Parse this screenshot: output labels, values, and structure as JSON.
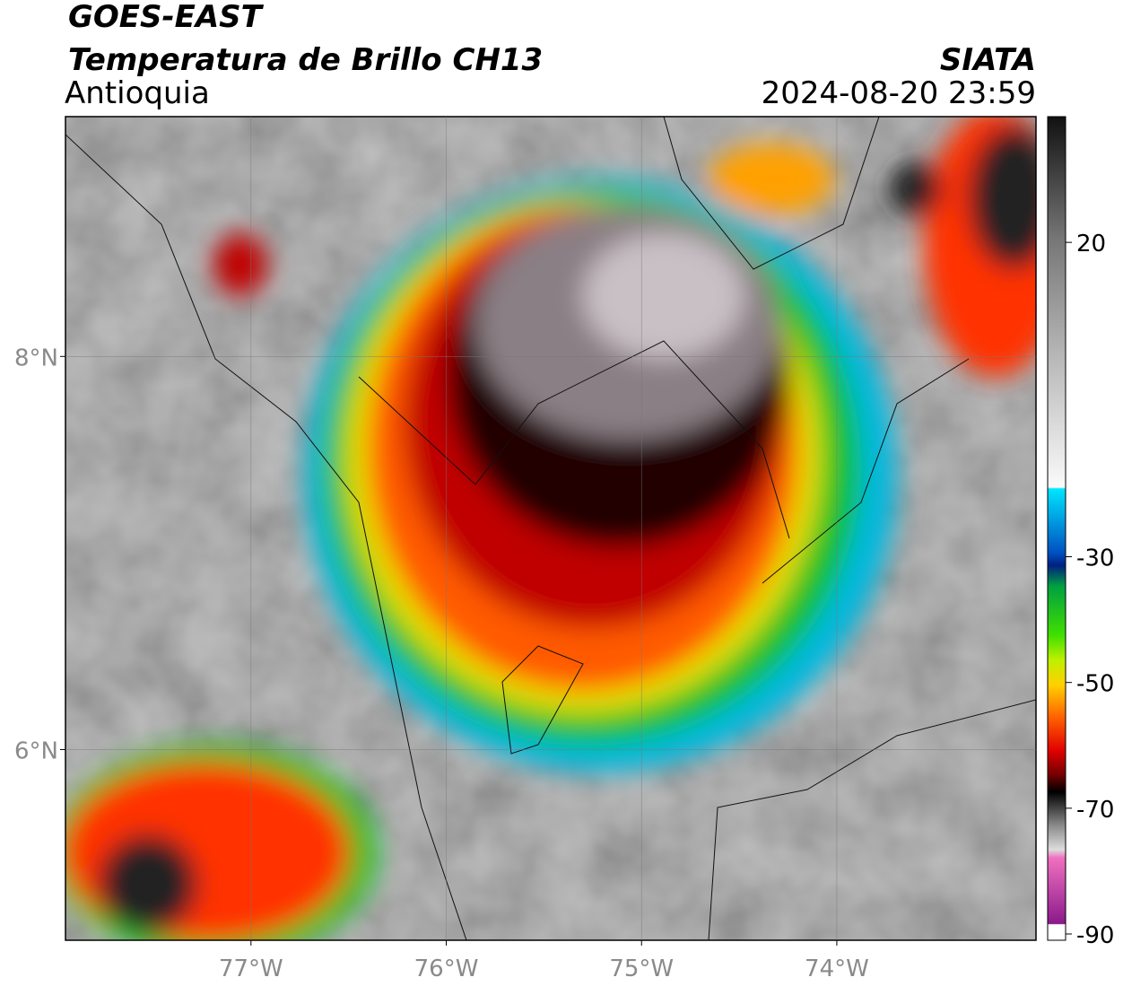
{
  "header": {
    "satellite": "GOES-EAST",
    "product": "Temperatura de Brillo CH13",
    "region": "Antioquia",
    "source": "SIATA",
    "datetime": "2024-08-20 23:59"
  },
  "map": {
    "latlim": [
      5.03,
      9.22
    ],
    "lonlim": [
      -77.95,
      -72.98
    ],
    "lat_ticks": [
      {
        "value": 8,
        "label": "8°N"
      },
      {
        "value": 6,
        "label": "6°N"
      }
    ],
    "lon_ticks": [
      {
        "value": -77,
        "label": "77°W"
      },
      {
        "value": -76,
        "label": "76°W"
      },
      {
        "value": -75,
        "label": "75°W"
      },
      {
        "value": -74,
        "label": "74°W"
      }
    ]
  },
  "colorbar": {
    "lim": [
      -91,
      40
    ],
    "ticks": [
      20,
      -30,
      -50,
      -70,
      -90
    ]
  }
}
